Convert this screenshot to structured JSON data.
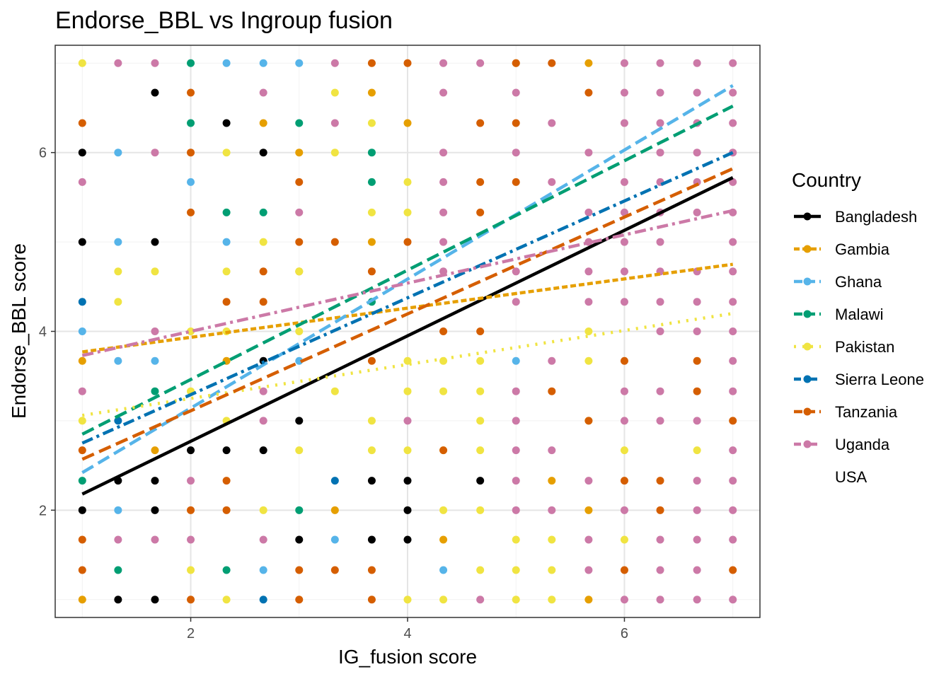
{
  "chart_data": {
    "type": "scatter",
    "title": "Endorse_BBL vs Ingroup fusion",
    "xlabel": "IG_fusion score",
    "ylabel": "Endorse_BBL score",
    "xlim": [
      0.75,
      7.25
    ],
    "ylim": [
      0.8,
      7.2
    ],
    "xticks": [
      2,
      4,
      6
    ],
    "yticks": [
      2,
      4,
      6
    ],
    "grid": true,
    "legend": {
      "title": "Country",
      "position": "right",
      "entries": [
        "Bangladesh",
        "Gambia",
        "Ghana",
        "Malawi",
        "Pakistan",
        "Sierra Leone",
        "Tanzania",
        "Uganda",
        "USA"
      ]
    },
    "series": [
      {
        "name": "Bangladesh",
        "color": "#000000",
        "dash": "solid",
        "fit": [
          [
            1,
            2.18
          ],
          [
            7,
            5.72
          ]
        ],
        "points": [
          [
            1.67,
            6.67
          ],
          [
            2.33,
            6.33
          ],
          [
            1,
            6
          ],
          [
            2.67,
            6
          ],
          [
            1,
            5
          ],
          [
            1.67,
            5
          ],
          [
            2.67,
            3.67
          ],
          [
            3,
            3
          ],
          [
            2,
            2.67
          ],
          [
            2.33,
            2.67
          ],
          [
            2.67,
            2.67
          ],
          [
            1.33,
            2.33
          ],
          [
            1.67,
            2.33
          ],
          [
            3.67,
            2.33
          ],
          [
            4,
            2.33
          ],
          [
            4.67,
            2.33
          ],
          [
            1,
            2
          ],
          [
            1.67,
            2
          ],
          [
            4,
            2
          ],
          [
            3,
            1.67
          ],
          [
            3.67,
            1.67
          ],
          [
            4,
            1.67
          ],
          [
            1.33,
            1
          ],
          [
            1.67,
            1
          ]
        ]
      },
      {
        "name": "Gambia",
        "color": "#E69F00",
        "dash": "short",
        "fit": [
          [
            1,
            3.77
          ],
          [
            7,
            4.75
          ]
        ],
        "points": [
          [
            5,
            7
          ],
          [
            5.67,
            7
          ],
          [
            3.67,
            6.67
          ],
          [
            3,
            6
          ],
          [
            4,
            6.33
          ],
          [
            2.67,
            6.33
          ],
          [
            3.67,
            5
          ],
          [
            3,
            4.67
          ],
          [
            2.33,
            3.67
          ],
          [
            1,
            3.67
          ],
          [
            1.67,
            2.67
          ],
          [
            3.33,
            2
          ],
          [
            4.33,
            1.67
          ],
          [
            5.33,
            2.33
          ],
          [
            5.67,
            2
          ],
          [
            1,
            1
          ],
          [
            5.67,
            1
          ]
        ]
      },
      {
        "name": "Ghana",
        "color": "#56B4E9",
        "dash": "long",
        "fit": [
          [
            1,
            2.42
          ],
          [
            7,
            6.75
          ]
        ],
        "points": [
          [
            2.67,
            7
          ],
          [
            2.33,
            7
          ],
          [
            3,
            7
          ],
          [
            1.33,
            6
          ],
          [
            2,
            5.67
          ],
          [
            1.33,
            5
          ],
          [
            2.33,
            5
          ],
          [
            1,
            4
          ],
          [
            1.33,
            3.67
          ],
          [
            1.67,
            3.67
          ],
          [
            3,
            3.67
          ],
          [
            5,
            3.67
          ],
          [
            1.33,
            2
          ],
          [
            3.33,
            1.67
          ],
          [
            2.67,
            1.33
          ],
          [
            4.33,
            1.33
          ]
        ]
      },
      {
        "name": "Malawi",
        "color": "#009E73",
        "dash": "long",
        "fit": [
          [
            1,
            2.85
          ],
          [
            7,
            6.52
          ]
        ],
        "points": [
          [
            2,
            7
          ],
          [
            2,
            6.33
          ],
          [
            3,
            6.33
          ],
          [
            3.67,
            6
          ],
          [
            3.67,
            5.67
          ],
          [
            2.33,
            5.33
          ],
          [
            2.67,
            5.33
          ],
          [
            3.67,
            4.33
          ],
          [
            1.67,
            3.33
          ],
          [
            1,
            2.33
          ],
          [
            3,
            2
          ],
          [
            1.33,
            1.33
          ],
          [
            2.33,
            1.33
          ]
        ]
      },
      {
        "name": "Pakistan",
        "color": "#F0E442",
        "dash": "dotted",
        "fit": [
          [
            1,
            3.06
          ],
          [
            7,
            4.2
          ]
        ],
        "points": [
          [
            1,
            7
          ],
          [
            3.33,
            6.67
          ],
          [
            3.67,
            6.33
          ],
          [
            2.33,
            6
          ],
          [
            3.33,
            6
          ],
          [
            4,
            5.67
          ],
          [
            3.67,
            5.33
          ],
          [
            4,
            5.33
          ],
          [
            2.67,
            5
          ],
          [
            1.33,
            4.67
          ],
          [
            1.67,
            4.67
          ],
          [
            3,
            4.67
          ],
          [
            2.33,
            4.67
          ],
          [
            1.33,
            4.33
          ],
          [
            2,
            4
          ],
          [
            2.33,
            4
          ],
          [
            3,
            4
          ],
          [
            5.67,
            4
          ],
          [
            4,
            3.67
          ],
          [
            4.33,
            3.67
          ],
          [
            4.67,
            3.67
          ],
          [
            5.67,
            3.67
          ],
          [
            2,
            3.33
          ],
          [
            3.33,
            3.33
          ],
          [
            4,
            3.33
          ],
          [
            4.33,
            3.33
          ],
          [
            4.67,
            3.33
          ],
          [
            1,
            3
          ],
          [
            2.33,
            3
          ],
          [
            3.67,
            3
          ],
          [
            4.67,
            3
          ],
          [
            5.67,
            3
          ],
          [
            3,
            2.67
          ],
          [
            3.67,
            2.67
          ],
          [
            4,
            2.67
          ],
          [
            4.33,
            2.67
          ],
          [
            4.67,
            2.67
          ],
          [
            6,
            2.67
          ],
          [
            6.67,
            2.67
          ],
          [
            2.67,
            2
          ],
          [
            4.33,
            2
          ],
          [
            4.67,
            2
          ],
          [
            5,
            1.67
          ],
          [
            5.33,
            1.67
          ],
          [
            6,
            1.67
          ],
          [
            2,
            1.33
          ],
          [
            4.67,
            1.33
          ],
          [
            5,
            1.33
          ],
          [
            5.33,
            1.33
          ],
          [
            2.33,
            1
          ],
          [
            4,
            1
          ],
          [
            4.33,
            1
          ],
          [
            5,
            1
          ],
          [
            5.33,
            1
          ]
        ]
      },
      {
        "name": "Sierra Leone",
        "color": "#0072B2",
        "dash": "dashdot",
        "fit": [
          [
            1,
            2.75
          ],
          [
            7,
            6
          ]
        ],
        "points": [
          [
            1,
            4.33
          ],
          [
            1.33,
            3
          ],
          [
            3.33,
            2.33
          ],
          [
            2.67,
            1
          ]
        ]
      },
      {
        "name": "Tanzania",
        "color": "#D55E00",
        "dash": "long",
        "fit": [
          [
            1,
            2.57
          ],
          [
            7,
            5.82
          ]
        ],
        "points": [
          [
            3.67,
            7
          ],
          [
            4,
            7
          ],
          [
            5,
            7
          ],
          [
            5.33,
            7
          ],
          [
            1,
            6.33
          ],
          [
            2,
            6.67
          ],
          [
            4.67,
            6.33
          ],
          [
            5,
            6.33
          ],
          [
            5.67,
            6.67
          ],
          [
            2,
            6
          ],
          [
            3,
            5.67
          ],
          [
            4.67,
            5.67
          ],
          [
            5,
            5.67
          ],
          [
            2,
            5.33
          ],
          [
            4.67,
            5.33
          ],
          [
            3,
            5
          ],
          [
            3.33,
            5
          ],
          [
            4,
            5
          ],
          [
            2.67,
            4.67
          ],
          [
            3.67,
            4.67
          ],
          [
            2.33,
            4.33
          ],
          [
            2.67,
            4.33
          ],
          [
            4.33,
            4
          ],
          [
            4.67,
            4
          ],
          [
            3.67,
            3.67
          ],
          [
            6,
            3.67
          ],
          [
            6.67,
            3.67
          ],
          [
            5.33,
            3.33
          ],
          [
            6.67,
            3.33
          ],
          [
            1,
            2.67
          ],
          [
            4.33,
            2.67
          ],
          [
            2,
            2
          ],
          [
            2.33,
            2
          ],
          [
            3,
            1.33
          ],
          [
            3.33,
            1.33
          ],
          [
            3.67,
            1.33
          ],
          [
            6,
            1.33
          ],
          [
            7,
            1.33
          ],
          [
            2,
            1
          ],
          [
            3,
            1
          ],
          [
            3.67,
            1
          ],
          [
            7,
            3
          ],
          [
            6.33,
            2.33
          ],
          [
            6.33,
            2
          ],
          [
            1,
            1.67
          ],
          [
            1,
            1.33
          ],
          [
            5.67,
            3
          ],
          [
            6,
            2.33
          ],
          [
            2.33,
            2.33
          ]
        ]
      },
      {
        "name": "Uganda",
        "color": "#CC79A7",
        "dash": "dashdot",
        "fit": [
          [
            1,
            3.73
          ],
          [
            7,
            5.35
          ]
        ],
        "points": [
          [
            1.33,
            7
          ],
          [
            1.67,
            7
          ],
          [
            3.33,
            7
          ],
          [
            4.33,
            7
          ],
          [
            4.67,
            7
          ],
          [
            6,
            7
          ],
          [
            6.33,
            7
          ],
          [
            6.67,
            7
          ],
          [
            7,
            7
          ],
          [
            2.67,
            6.67
          ],
          [
            4.33,
            6.67
          ],
          [
            5,
            6.67
          ],
          [
            6,
            6.67
          ],
          [
            6.33,
            6.67
          ],
          [
            6.67,
            6.67
          ],
          [
            7,
            6.67
          ],
          [
            3.33,
            6.33
          ],
          [
            5.33,
            6.33
          ],
          [
            6,
            6.33
          ],
          [
            6.33,
            6.33
          ],
          [
            6.67,
            6.33
          ],
          [
            7,
            6.33
          ],
          [
            1.67,
            6
          ],
          [
            4.33,
            6
          ],
          [
            5,
            6
          ],
          [
            5.67,
            6
          ],
          [
            6.33,
            6
          ],
          [
            6.67,
            6
          ],
          [
            7,
            6
          ],
          [
            1,
            5.67
          ],
          [
            4.33,
            5.67
          ],
          [
            5.33,
            5.67
          ],
          [
            6,
            5.67
          ],
          [
            6.33,
            5.67
          ],
          [
            6.67,
            5.67
          ],
          [
            7,
            5.67
          ],
          [
            3,
            5.33
          ],
          [
            4.33,
            5.33
          ],
          [
            5.67,
            5.33
          ],
          [
            6,
            5.33
          ],
          [
            6.33,
            5.33
          ],
          [
            6.67,
            5.33
          ],
          [
            7,
            5.33
          ],
          [
            4.33,
            5
          ],
          [
            5.67,
            5
          ],
          [
            6,
            5
          ],
          [
            6.33,
            5
          ],
          [
            7,
            5
          ],
          [
            4.33,
            4.67
          ],
          [
            5,
            4.67
          ],
          [
            5.67,
            4.67
          ],
          [
            6,
            4.67
          ],
          [
            6.33,
            4.67
          ],
          [
            6.67,
            4.67
          ],
          [
            7,
            4.67
          ],
          [
            5,
            4.33
          ],
          [
            5.67,
            4.33
          ],
          [
            6,
            4.33
          ],
          [
            6.33,
            4.33
          ],
          [
            6.67,
            4.33
          ],
          [
            7,
            4.33
          ],
          [
            1.67,
            4
          ],
          [
            6.33,
            4
          ],
          [
            6.67,
            4
          ],
          [
            7,
            4
          ],
          [
            5.33,
            3.67
          ],
          [
            7,
            3.67
          ],
          [
            1,
            3.33
          ],
          [
            2.67,
            3.33
          ],
          [
            5,
            3.33
          ],
          [
            6,
            3.33
          ],
          [
            6.33,
            3.33
          ],
          [
            7,
            3.33
          ],
          [
            2.67,
            3
          ],
          [
            4,
            3
          ],
          [
            5,
            3
          ],
          [
            6,
            3
          ],
          [
            6.33,
            3
          ],
          [
            6.67,
            3
          ],
          [
            5,
            2.67
          ],
          [
            5.33,
            2.67
          ],
          [
            7,
            2.67
          ],
          [
            2,
            2.33
          ],
          [
            5,
            2.33
          ],
          [
            5.67,
            2.33
          ],
          [
            6.67,
            2.33
          ],
          [
            7,
            2.33
          ],
          [
            5,
            2
          ],
          [
            5.33,
            2
          ],
          [
            6,
            2
          ],
          [
            6.67,
            2
          ],
          [
            7,
            2
          ],
          [
            1.33,
            1.67
          ],
          [
            1.67,
            1.67
          ],
          [
            2,
            1.67
          ],
          [
            2.67,
            1.67
          ],
          [
            5.67,
            1.67
          ],
          [
            6.33,
            1.67
          ],
          [
            6.67,
            1.67
          ],
          [
            7,
            1.67
          ],
          [
            5.67,
            1.33
          ],
          [
            6.33,
            1.33
          ],
          [
            6.67,
            1.33
          ],
          [
            4.67,
            1
          ],
          [
            6,
            1
          ],
          [
            6.33,
            1
          ],
          [
            6.67,
            1
          ],
          [
            7,
            1
          ]
        ]
      },
      {
        "name": "USA",
        "color": "#999999",
        "dash": "none",
        "fit": null,
        "points": []
      }
    ]
  }
}
